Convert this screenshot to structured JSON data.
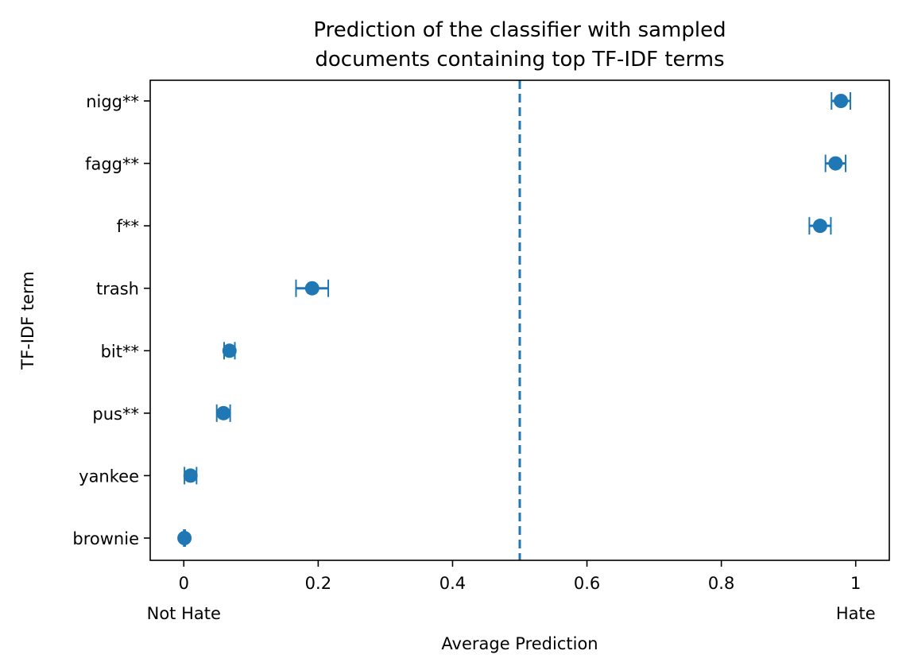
{
  "chart_data": {
    "type": "scatter",
    "title_lines": [
      "Prediction of the classifier with sampled",
      "documents containing top TF-IDF terms"
    ],
    "xlabel": "Average Prediction",
    "ylabel": "TF-IDF term",
    "xlim": [
      -0.05,
      1.05
    ],
    "x_ticks": [
      {
        "value": 0,
        "label": "0",
        "sublabel": "Not Hate"
      },
      {
        "value": 0.2,
        "label": "0.2",
        "sublabel": ""
      },
      {
        "value": 0.4,
        "label": "0.4",
        "sublabel": ""
      },
      {
        "value": 0.6,
        "label": "0.6",
        "sublabel": ""
      },
      {
        "value": 0.8,
        "label": "0.8",
        "sublabel": ""
      },
      {
        "value": 1,
        "label": "1",
        "sublabel": "Hate"
      }
    ],
    "grid": false,
    "threshold": {
      "x": 0.5,
      "style": "dashed"
    },
    "color": "#1f77b4",
    "points": [
      {
        "term": "nigg**",
        "mean": 0.978,
        "err": 0.014
      },
      {
        "term": "fagg**",
        "mean": 0.97,
        "err": 0.015
      },
      {
        "term": "f**",
        "mean": 0.947,
        "err": 0.016
      },
      {
        "term": "trash",
        "mean": 0.191,
        "err": 0.024
      },
      {
        "term": "bit**",
        "mean": 0.068,
        "err": 0.008
      },
      {
        "term": "pus**",
        "mean": 0.059,
        "err": 0.01
      },
      {
        "term": "yankee",
        "mean": 0.01,
        "err": 0.009
      },
      {
        "term": "brownie",
        "mean": 0.001,
        "err": 0.001
      }
    ]
  }
}
